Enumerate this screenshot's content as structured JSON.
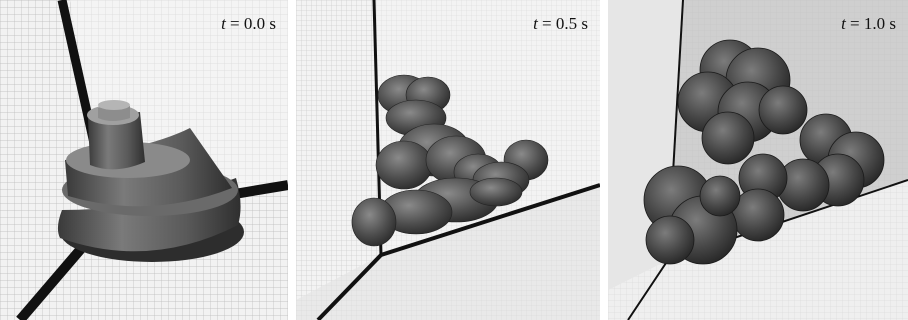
{
  "panels": [
    {
      "var": "t",
      "value": "= 0.0 s"
    },
    {
      "var": "t",
      "value": "= 0.5 s"
    },
    {
      "var": "t",
      "value": "= 1.0 s"
    }
  ]
}
